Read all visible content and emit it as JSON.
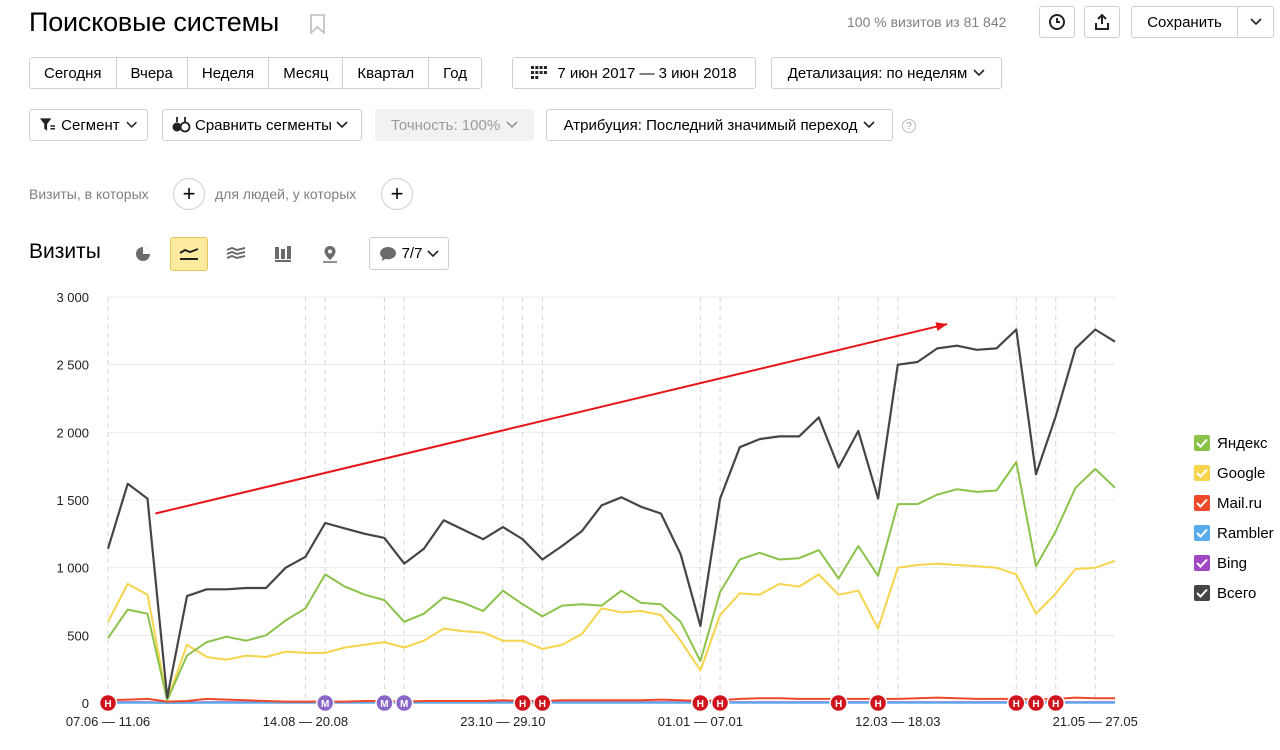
{
  "header": {
    "title": "Поисковые системы",
    "visits_info": "100 % визитов из 81 842",
    "save_label": "Сохранить"
  },
  "periods": [
    "Сегодня",
    "Вчера",
    "Неделя",
    "Месяц",
    "Квартал",
    "Год"
  ],
  "date_range": "7 июн 2017 — 3 июн 2018",
  "detail": "Детализация: по неделям",
  "segment": "Сегмент",
  "compare": "Сравнить сегменты",
  "accuracy": "Точность: 100%",
  "attribution": "Атрибуция: Последний значимый переход",
  "help_mark": "?",
  "filters": {
    "visits_label": "Визиты, в которых",
    "people_label": "для людей, у которых"
  },
  "chart_title": "Визиты",
  "comments_count": "7/7",
  "icons": {
    "bookmark": "bookmark-icon",
    "history": "clock-icon",
    "export": "export-icon",
    "calendar": "calendar-icon",
    "segment": "funnel-icon",
    "compare": "compare-segments-icon",
    "views": [
      "pie-chart-icon",
      "line-chart-icon",
      "area-chart-icon",
      "bar-chart-icon",
      "map-icon"
    ],
    "comment": "comment-icon"
  },
  "colors": {
    "yandex": "#8bc34a",
    "google": "#f6d44b",
    "mailru": "#f0482a",
    "rambler": "#5aabec",
    "bing": "#a047c6",
    "total": "#454545",
    "arrow": "#e8141a",
    "marker_red": "#d0141e",
    "marker_purple": "#8a66c8"
  },
  "chart_data": {
    "type": "line",
    "ylim": [
      0,
      3000
    ],
    "yticks": [
      "0",
      "500",
      "1 000",
      "1 500",
      "2 000",
      "2 500",
      "3 000"
    ],
    "xtick_labels": [
      {
        "label": "07.06 — 11.06",
        "index": 0
      },
      {
        "label": "14.08 — 20.08",
        "index": 10
      },
      {
        "label": "23.10 — 29.10",
        "index": 20
      },
      {
        "label": "01.01 — 07.01",
        "index": 30
      },
      {
        "label": "12.03 — 18.03",
        "index": 40
      },
      {
        "label": "21.05 — 27.05",
        "index": 50
      }
    ],
    "series": [
      {
        "name": "Яндекс",
        "color_key": "yandex",
        "values": [
          480,
          690,
          660,
          20,
          350,
          450,
          490,
          460,
          500,
          610,
          700,
          950,
          860,
          800,
          760,
          600,
          660,
          780,
          740,
          680,
          830,
          730,
          640,
          720,
          730,
          720,
          830,
          740,
          730,
          600,
          310,
          820,
          1060,
          1110,
          1060,
          1070,
          1130,
          920,
          1160,
          940,
          1470,
          1470,
          1540,
          1580,
          1560,
          1570,
          1780,
          1010,
          1270,
          1590,
          1730,
          1590
        ]
      },
      {
        "name": "Google",
        "color_key": "google",
        "values": [
          600,
          880,
          800,
          20,
          430,
          340,
          320,
          350,
          340,
          380,
          370,
          370,
          410,
          430,
          450,
          410,
          460,
          550,
          530,
          520,
          460,
          460,
          400,
          430,
          510,
          700,
          670,
          680,
          650,
          460,
          240,
          650,
          810,
          800,
          880,
          860,
          950,
          800,
          830,
          550,
          1000,
          1020,
          1030,
          1020,
          1010,
          1000,
          950,
          660,
          810,
          990,
          1000,
          1050
        ]
      },
      {
        "name": "Mail.ru",
        "color_key": "mailru",
        "values": [
          20,
          25,
          30,
          10,
          15,
          30,
          25,
          20,
          15,
          10,
          10,
          10,
          10,
          15,
          15,
          10,
          15,
          15,
          15,
          15,
          20,
          15,
          15,
          20,
          20,
          20,
          20,
          20,
          25,
          20,
          15,
          20,
          30,
          35,
          35,
          30,
          30,
          30,
          30,
          30,
          30,
          35,
          40,
          35,
          30,
          30,
          30,
          25,
          30,
          40,
          35,
          35
        ]
      },
      {
        "name": "Rambler",
        "color_key": "rambler",
        "values": [
          2,
          2,
          2,
          1,
          1,
          2,
          2,
          2,
          2,
          2,
          2,
          2,
          2,
          2,
          2,
          2,
          2,
          2,
          2,
          2,
          2,
          2,
          2,
          2,
          2,
          2,
          2,
          2,
          2,
          2,
          2,
          2,
          2,
          2,
          2,
          2,
          2,
          2,
          2,
          2,
          2,
          2,
          2,
          2,
          2,
          2,
          2,
          2,
          2,
          2,
          2,
          2
        ]
      },
      {
        "name": "Bing",
        "color_key": "bing",
        "values": [
          5,
          5,
          5,
          2,
          4,
          5,
          5,
          5,
          5,
          5,
          5,
          5,
          5,
          5,
          5,
          5,
          5,
          5,
          5,
          5,
          5,
          5,
          5,
          5,
          5,
          5,
          5,
          5,
          5,
          5,
          5,
          5,
          5,
          5,
          5,
          5,
          5,
          5,
          5,
          5,
          5,
          5,
          5,
          5,
          5,
          5,
          5,
          5,
          5,
          5,
          5,
          5
        ]
      },
      {
        "name": "Всего",
        "color_key": "total",
        "values": [
          1140,
          1620,
          1510,
          40,
          790,
          840,
          840,
          850,
          850,
          1000,
          1080,
          1330,
          1290,
          1250,
          1220,
          1030,
          1140,
          1350,
          1280,
          1210,
          1300,
          1210,
          1060,
          1160,
          1270,
          1460,
          1520,
          1450,
          1400,
          1100,
          570,
          1510,
          1890,
          1950,
          1970,
          1970,
          2110,
          1740,
          2010,
          1510,
          2500,
          2520,
          2620,
          2640,
          2610,
          2620,
          2760,
          1690,
          2120,
          2620,
          2760,
          2670
        ]
      }
    ],
    "markers": [
      {
        "text": "Н",
        "index": 0,
        "color_key": "marker_red"
      },
      {
        "text": "М",
        "index": 11,
        "color_key": "marker_purple"
      },
      {
        "text": "М",
        "index": 14,
        "color_key": "marker_purple"
      },
      {
        "text": "М",
        "index": 15,
        "color_key": "marker_purple"
      },
      {
        "text": "Н",
        "index": 21,
        "color_key": "marker_red"
      },
      {
        "text": "Н",
        "index": 22,
        "color_key": "marker_red"
      },
      {
        "text": "Н",
        "index": 30,
        "color_key": "marker_red"
      },
      {
        "text": "Н",
        "index": 31,
        "color_key": "marker_red"
      },
      {
        "text": "Н",
        "index": 37,
        "color_key": "marker_red"
      },
      {
        "text": "Н",
        "index": 39,
        "color_key": "marker_red"
      },
      {
        "text": "Н",
        "index": 46,
        "color_key": "marker_red"
      },
      {
        "text": "Н",
        "index": 47,
        "color_key": "marker_red"
      },
      {
        "text": "Н",
        "index": 48,
        "color_key": "marker_red"
      }
    ],
    "trend_arrow": {
      "from": {
        "index": 2.4,
        "value": 1400
      },
      "to": {
        "index": 42.5,
        "value": 2800
      }
    },
    "legend_position": "right",
    "grid": true
  }
}
